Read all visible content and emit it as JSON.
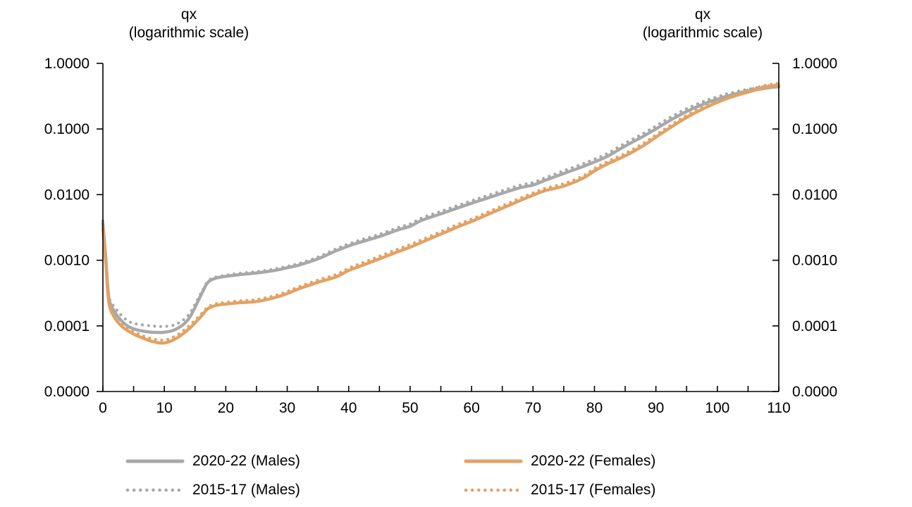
{
  "titles": {
    "left": {
      "line1": "qx",
      "line2": "(logarithmic scale)"
    },
    "right": {
      "line1": "qx",
      "line2": "(logarithmic scale)"
    }
  },
  "chart_data": {
    "type": "line",
    "title": "",
    "xlabel": "",
    "ylabel": "qx (logarithmic scale)",
    "grid": false,
    "x_axis": {
      "range": [
        0,
        110
      ],
      "major_tick_step": 10,
      "minor_tick_step": 5,
      "tick_values": [
        0,
        10,
        20,
        30,
        40,
        50,
        60,
        70,
        80,
        90,
        100,
        110
      ],
      "tick_labels": [
        "0",
        "10",
        "20",
        "30",
        "40",
        "50",
        "60",
        "70",
        "80",
        "90",
        "100",
        "110"
      ]
    },
    "y_axis": {
      "scale": "log",
      "decades": 5,
      "tick_values": [
        1,
        0.1,
        0.01,
        0.001,
        0.0001,
        1e-05
      ],
      "tick_labels": [
        "1.0000",
        "0.1000",
        "0.0100",
        "0.0010",
        "0.0001",
        "0.0000"
      ],
      "mirrored_right": true
    },
    "colors": {
      "males": "#A8A8A8",
      "females": "#E2A263"
    },
    "ages": [
      0,
      0.5,
      1,
      2,
      3,
      4,
      5,
      6,
      8,
      10,
      12,
      14,
      16,
      17,
      18,
      19,
      20,
      22,
      25,
      28,
      30,
      32,
      35,
      38,
      40,
      42,
      45,
      48,
      50,
      52,
      55,
      58,
      60,
      62,
      65,
      68,
      70,
      72,
      75,
      78,
      80,
      82,
      85,
      88,
      90,
      92,
      95,
      98,
      100,
      102,
      105,
      108,
      110
    ],
    "series": [
      {
        "name": "2020-22 (Males)",
        "period": "2020-22",
        "sex": "Males",
        "line_style": "solid",
        "color": "#A8A8A8",
        "qx": [
          0.0037,
          0.00098,
          0.00026,
          0.00016,
          0.00012,
          0.0001,
          9e-05,
          8.5e-05,
          8e-05,
          8e-05,
          9e-05,
          0.00013,
          0.0003,
          0.00045,
          0.00052,
          0.00055,
          0.00057,
          0.0006,
          0.00064,
          0.0007,
          0.00077,
          0.00085,
          0.00105,
          0.0014,
          0.00165,
          0.0019,
          0.0023,
          0.0029,
          0.0033,
          0.0041,
          0.0051,
          0.0064,
          0.0074,
          0.0085,
          0.0105,
          0.0128,
          0.014,
          0.0165,
          0.021,
          0.0265,
          0.0315,
          0.038,
          0.055,
          0.078,
          0.1,
          0.13,
          0.185,
          0.245,
          0.285,
          0.325,
          0.375,
          0.42,
          0.44
        ]
      },
      {
        "name": "2020-22 (Females)",
        "period": "2020-22",
        "sex": "Females",
        "line_style": "solid",
        "color": "#E2A263",
        "qx": [
          0.0031,
          0.00083,
          0.00022,
          0.00013,
          0.0001,
          8.5e-05,
          7.5e-05,
          6.8e-05,
          5.8e-05,
          5.5e-05,
          6.5e-05,
          9e-05,
          0.00014,
          0.00018,
          0.0002,
          0.00021,
          0.000215,
          0.000225,
          0.000235,
          0.00027,
          0.00031,
          0.00037,
          0.00046,
          0.00056,
          0.0007,
          0.00082,
          0.00105,
          0.00135,
          0.00158,
          0.0019,
          0.0025,
          0.0033,
          0.0039,
          0.0047,
          0.0062,
          0.0082,
          0.0098,
          0.0115,
          0.0135,
          0.0175,
          0.023,
          0.029,
          0.039,
          0.056,
          0.075,
          0.1,
          0.15,
          0.21,
          0.255,
          0.3,
          0.365,
          0.435,
          0.465
        ]
      },
      {
        "name": "2015-17 (Males)",
        "period": "2015-17",
        "sex": "Males",
        "line_style": "dotted",
        "color": "#A8A8A8",
        "qx": [
          0.004,
          0.00106,
          0.00028,
          0.00019,
          0.000145,
          0.00012,
          0.00011,
          0.000105,
          0.0001,
          9.8e-05,
          0.000107,
          0.00015,
          0.00032,
          0.00047,
          0.00054,
          0.00057,
          0.00059,
          0.00063,
          0.00067,
          0.00074,
          0.00081,
          0.0009,
          0.00112,
          0.0015,
          0.00177,
          0.00205,
          0.00248,
          0.00314,
          0.00358,
          0.00445,
          0.00555,
          0.00697,
          0.00807,
          0.00927,
          0.0115,
          0.014,
          0.0153,
          0.0181,
          0.0231,
          0.0292,
          0.0347,
          0.0419,
          0.0607,
          0.0862,
          0.111,
          0.144,
          0.204,
          0.268,
          0.31,
          0.352,
          0.404,
          0.45,
          0.475
        ]
      },
      {
        "name": "2015-17 (Females)",
        "period": "2015-17",
        "sex": "Females",
        "line_style": "dotted",
        "color": "#E2A263",
        "qx": [
          0.0035,
          0.00092,
          0.00024,
          0.00014,
          0.00011,
          9.2e-05,
          8.2e-05,
          7.4e-05,
          6.4e-05,
          6.1e-05,
          7.2e-05,
          0.0001,
          0.000152,
          0.000192,
          0.000212,
          0.000222,
          0.000228,
          0.00024,
          0.000252,
          0.00029,
          0.000335,
          0.0004,
          0.0005,
          0.00061,
          0.00076,
          0.0009,
          0.00115,
          0.00148,
          0.00173,
          0.00208,
          0.00273,
          0.0036,
          0.00425,
          0.00512,
          0.00675,
          0.00892,
          0.0106,
          0.0125,
          0.0147,
          0.019,
          0.025,
          0.0315,
          0.0424,
          0.0608,
          0.0813,
          0.108,
          0.162,
          0.227,
          0.275,
          0.323,
          0.393,
          0.467,
          0.5
        ]
      }
    ],
    "legend": [
      {
        "label": "2020-22 (Males)",
        "style": "solid",
        "color": "#A8A8A8"
      },
      {
        "label": "2015-17 (Males)",
        "style": "dotted",
        "color": "#A8A8A8"
      },
      {
        "label": "2020-22 (Females)",
        "style": "solid",
        "color": "#E2A263"
      },
      {
        "label": "2015-17 (Females)",
        "style": "dotted",
        "color": "#E2A263"
      }
    ],
    "legend_position": "bottom"
  }
}
